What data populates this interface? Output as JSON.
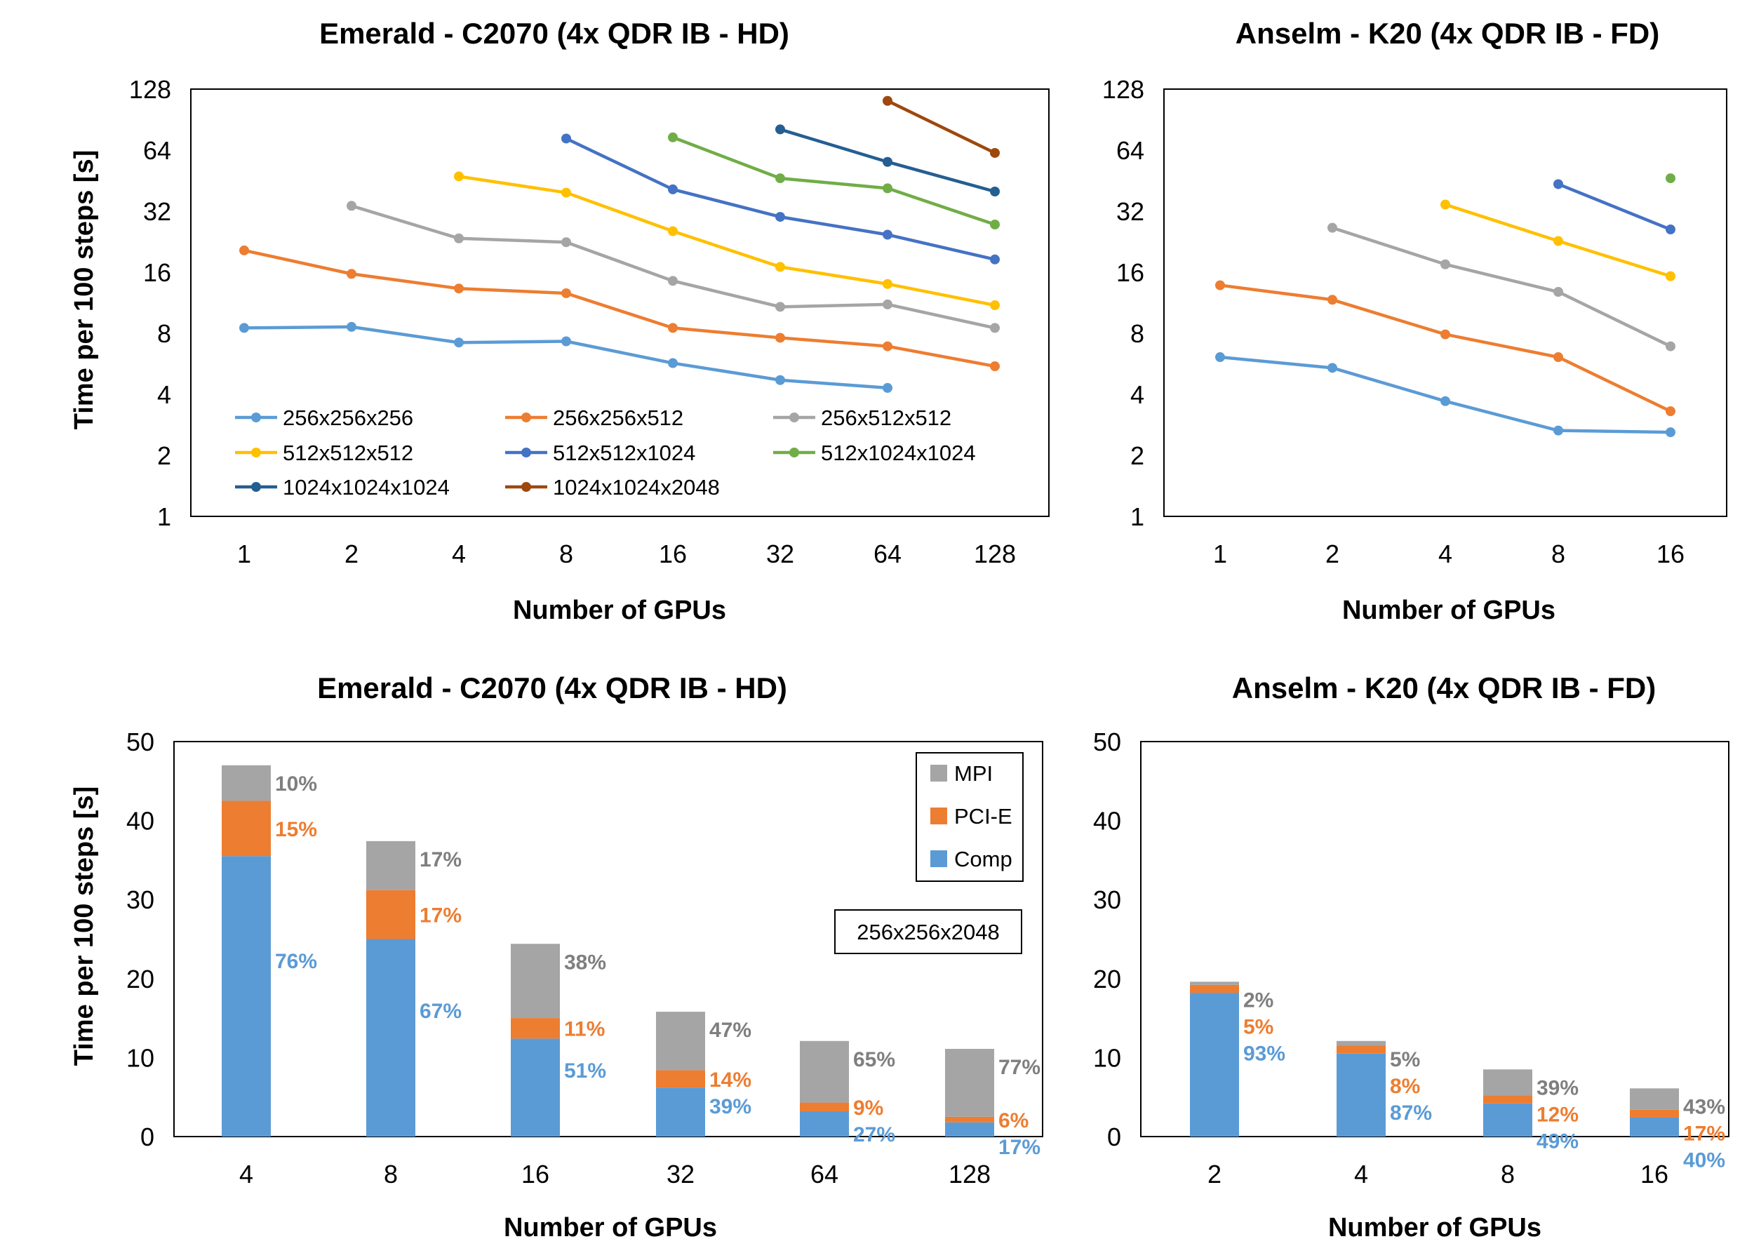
{
  "colors": {
    "comp": "#5b9bd5",
    "pcie": "#ed7d31",
    "mpi": "#a5a5a5",
    "pct_comp": "#5b9bd5",
    "pct_pcie": "#ed7d31",
    "pct_mpi": "#7f7f7f"
  },
  "chart_data": [
    {
      "type": "line",
      "title": "Emerald - C2070 (4x QDR IB - HD)",
      "xlabel": "Number of GPUs",
      "ylabel": "Time per 100 steps [s]",
      "yscale": "log2",
      "ylim": [
        1,
        128
      ],
      "yticks": [
        "1",
        "2",
        "4",
        "8",
        "16",
        "32",
        "64",
        "128"
      ],
      "categories": [
        "1",
        "2",
        "4",
        "8",
        "16",
        "32",
        "64",
        "128"
      ],
      "grid": false,
      "legend": "inside-bottom",
      "series": [
        {
          "name": "256x256x256",
          "color": "#5b9bd5",
          "values": [
            8.5,
            8.6,
            7.2,
            7.3,
            5.7,
            4.7,
            4.3,
            null
          ]
        },
        {
          "name": "256x256x512",
          "color": "#ed7d31",
          "values": [
            20.5,
            15.7,
            13.3,
            12.6,
            8.5,
            7.6,
            6.9,
            5.5
          ]
        },
        {
          "name": "256x512x512",
          "color": "#a5a5a5",
          "values": [
            null,
            34,
            23.5,
            22.5,
            14.5,
            10.8,
            11.1,
            8.5
          ]
        },
        {
          "name": "512x512x512",
          "color": "#ffc000",
          "values": [
            null,
            null,
            47.5,
            39.5,
            25.5,
            17,
            14,
            11
          ]
        },
        {
          "name": "512x512x1024",
          "color": "#4472c4",
          "values": [
            null,
            null,
            null,
            73,
            41,
            30,
            24.5,
            18.5
          ]
        },
        {
          "name": "512x1024x1024",
          "color": "#70ad47",
          "values": [
            null,
            null,
            null,
            null,
            74,
            46.5,
            41.5,
            27.5
          ]
        },
        {
          "name": "1024x1024x1024",
          "color": "#255e91",
          "values": [
            null,
            null,
            null,
            null,
            null,
            81,
            56,
            40
          ]
        },
        {
          "name": "1024x1024x2048",
          "color": "#9e480e",
          "values": [
            null,
            null,
            null,
            null,
            null,
            null,
            112,
            62
          ]
        }
      ]
    },
    {
      "type": "line",
      "title": "Anselm - K20 (4x QDR IB - FD)",
      "xlabel": "Number of GPUs",
      "ylabel": "",
      "yscale": "log2",
      "ylim": [
        1,
        128
      ],
      "yticks": [
        "1",
        "2",
        "4",
        "8",
        "16",
        "32",
        "64",
        "128"
      ],
      "categories": [
        "1",
        "2",
        "4",
        "8",
        "16"
      ],
      "grid": false,
      "series": [
        {
          "color": "#5b9bd5",
          "values": [
            6.1,
            5.4,
            3.7,
            2.65,
            2.6
          ]
        },
        {
          "color": "#ed7d31",
          "values": [
            13.8,
            11.7,
            7.9,
            6.1,
            3.3
          ]
        },
        {
          "color": "#a5a5a5",
          "values": [
            null,
            26.5,
            17.5,
            12.8,
            6.9
          ]
        },
        {
          "color": "#ffc000",
          "values": [
            null,
            null,
            34.5,
            22.8,
            15.3
          ]
        },
        {
          "color": "#4472c4",
          "values": [
            null,
            null,
            null,
            43.5,
            26
          ]
        },
        {
          "color": "#70ad47",
          "values": [
            null,
            null,
            null,
            null,
            46.5
          ]
        }
      ]
    },
    {
      "type": "bar",
      "stacked": true,
      "title": "Emerald - C2070 (4x QDR IB - HD)",
      "xlabel": "Number of GPUs",
      "ylabel": "Time per 100 steps [s]",
      "ylim": [
        0,
        50
      ],
      "yticks": [
        "0",
        "10",
        "20",
        "30",
        "40",
        "50"
      ],
      "categories": [
        "4",
        "8",
        "16",
        "32",
        "64",
        "128"
      ],
      "legend": "top-right",
      "annotation": "256x256x2048",
      "series": [
        {
          "name": "Comp",
          "values": [
            35.5,
            25,
            12.4,
            6.2,
            3.2,
            1.8
          ],
          "labels": [
            "76%",
            "67%",
            "51%",
            "39%",
            "27%",
            "17%"
          ]
        },
        {
          "name": "PCI-E",
          "values": [
            7,
            6.2,
            2.6,
            2.2,
            1.1,
            0.7
          ],
          "labels": [
            "15%",
            "17%",
            "11%",
            "14%",
            "9%",
            "6%"
          ]
        },
        {
          "name": "MPI",
          "values": [
            4.5,
            6.2,
            9.4,
            7.4,
            7.8,
            8.6
          ],
          "labels": [
            "10%",
            "17%",
            "38%",
            "47%",
            "65%",
            "77%"
          ]
        }
      ]
    },
    {
      "type": "bar",
      "stacked": true,
      "title": "Anselm - K20 (4x QDR IB - FD)",
      "xlabel": "Number of GPUs",
      "ylabel": "",
      "ylim": [
        0,
        50
      ],
      "yticks": [
        "0",
        "10",
        "20",
        "30",
        "40",
        "50"
      ],
      "categories": [
        "2",
        "4",
        "8",
        "16"
      ],
      "series": [
        {
          "name": "Comp",
          "values": [
            18.2,
            10.5,
            4.2,
            2.4
          ],
          "labels": [
            "93%",
            "87%",
            "49%",
            "40%"
          ]
        },
        {
          "name": "PCI-E",
          "values": [
            1.0,
            1.0,
            1.0,
            1.0
          ],
          "labels": [
            "5%",
            "8%",
            "12%",
            "17%"
          ]
        },
        {
          "name": "MPI",
          "values": [
            0.4,
            0.6,
            3.3,
            2.7
          ],
          "labels": [
            "2%",
            "5%",
            "39%",
            "43%"
          ]
        }
      ]
    }
  ]
}
